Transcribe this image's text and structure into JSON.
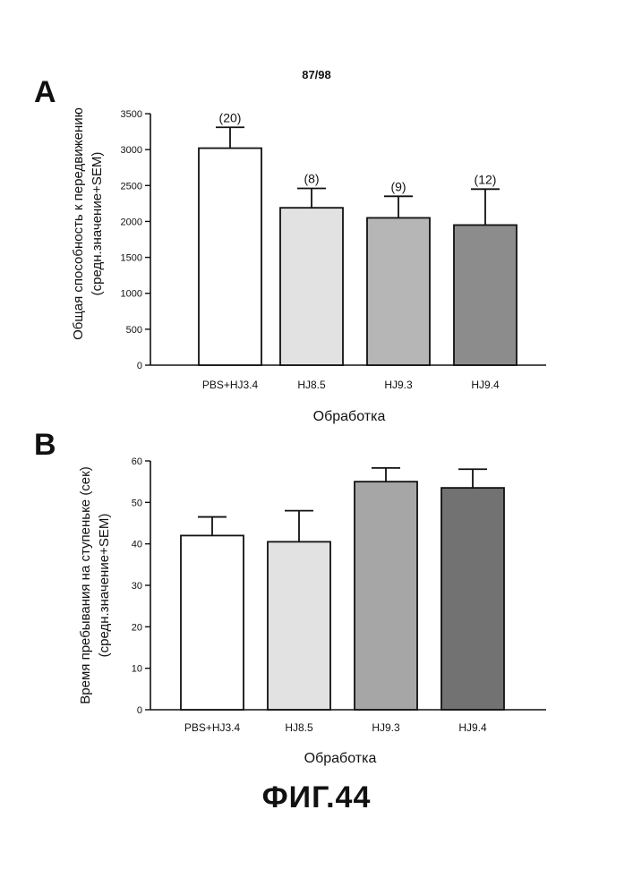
{
  "page_number": "87/98",
  "figure_caption": "ФИГ.44",
  "chart_data": [
    {
      "panel": "A",
      "type": "bar",
      "title": "",
      "xlabel": "Обработка",
      "ylabel": [
        "Общая способность к передвижению",
        "(средн.значение+SEM)"
      ],
      "categories": [
        "PBS+HJ3.4",
        "HJ8.5",
        "HJ9.3",
        "HJ9.4"
      ],
      "values": [
        3020,
        2190,
        2050,
        1950
      ],
      "error": [
        290,
        270,
        300,
        500
      ],
      "bar_labels": [
        "(20)",
        "(8)",
        "(9)",
        "(12)"
      ],
      "ylim": [
        0,
        3500
      ],
      "yticks": [
        "0",
        "500",
        "1000",
        "1500",
        "2000",
        "2500",
        "3000",
        "3500"
      ],
      "fills": [
        "#ffffff",
        "#e2e2e2",
        "#b6b6b6",
        "#8c8c8c"
      ]
    },
    {
      "panel": "B",
      "type": "bar",
      "title": "",
      "xlabel": "Обработка",
      "ylabel": [
        "Время пребывания на ступеньке (сек)",
        "(средн.значение+SEM)"
      ],
      "categories": [
        "PBS+HJ3.4",
        "HJ8.5",
        "HJ9.3",
        "HJ9.4"
      ],
      "values": [
        42,
        40.5,
        55,
        53.5
      ],
      "error": [
        4.5,
        7.5,
        3.3,
        4.5
      ],
      "bar_labels": [],
      "ylim": [
        0,
        60
      ],
      "yticks": [
        "0",
        "10",
        "20",
        "30",
        "40",
        "50",
        "60"
      ],
      "fills": [
        "#ffffff",
        "#e2e2e2",
        "#a6a6a6",
        "#727272"
      ]
    }
  ]
}
